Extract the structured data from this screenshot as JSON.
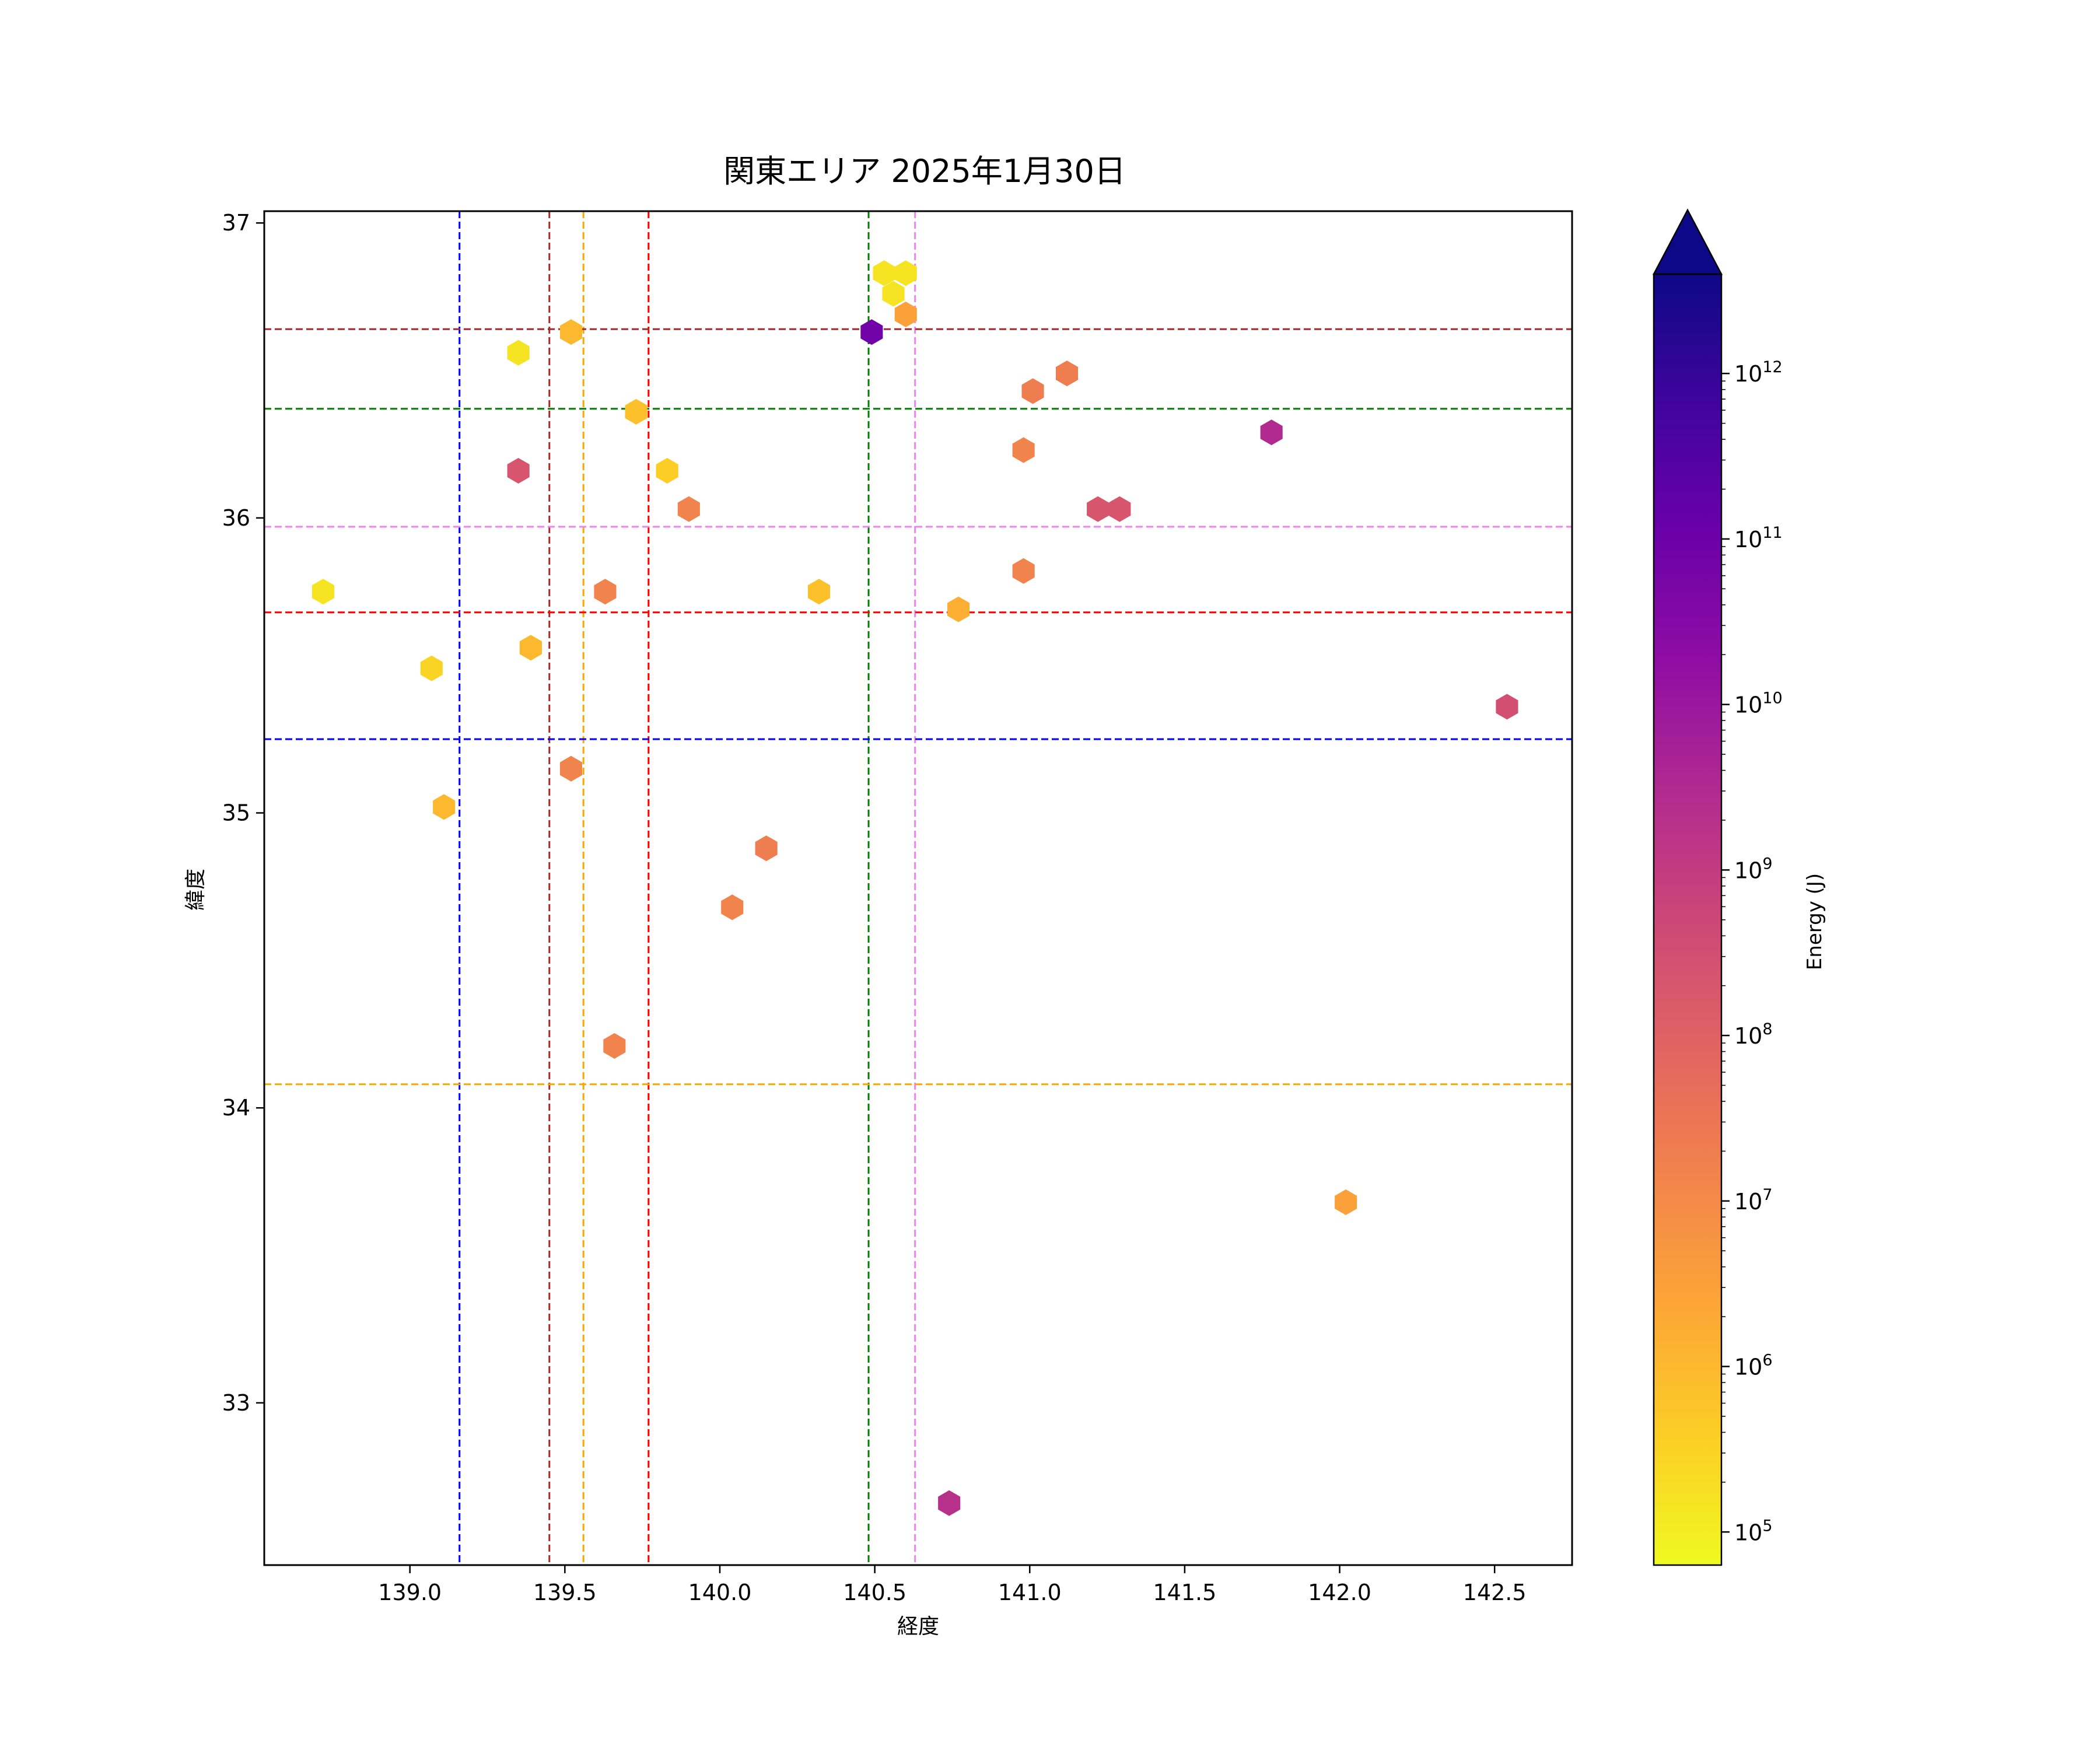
{
  "chart_data": {
    "type": "scatter",
    "title": "関東エリア 2025年1月30日",
    "xlabel": "経度",
    "ylabel": "緯度",
    "xlim": [
      138.53,
      142.75
    ],
    "ylim": [
      32.45,
      37.04
    ],
    "xticks": [
      {
        "value": 139.0,
        "label": "139.0"
      },
      {
        "value": 139.5,
        "label": "139.5"
      },
      {
        "value": 140.0,
        "label": "140.0"
      },
      {
        "value": 140.5,
        "label": "140.5"
      },
      {
        "value": 141.0,
        "label": "141.0"
      },
      {
        "value": 141.5,
        "label": "141.5"
      },
      {
        "value": 142.0,
        "label": "142.0"
      },
      {
        "value": 142.5,
        "label": "142.5"
      }
    ],
    "yticks": [
      {
        "value": 33,
        "label": "33"
      },
      {
        "value": 34,
        "label": "34"
      },
      {
        "value": 35,
        "label": "35"
      },
      {
        "value": 36,
        "label": "36"
      },
      {
        "value": 37,
        "label": "37"
      }
    ],
    "grid": false,
    "marker": "hexagon",
    "points": [
      {
        "x": 138.72,
        "y": 35.75,
        "energy": 150000.0
      },
      {
        "x": 139.07,
        "y": 35.49,
        "energy": 300000.0
      },
      {
        "x": 139.11,
        "y": 35.02,
        "energy": 1000000.0
      },
      {
        "x": 139.35,
        "y": 36.56,
        "energy": 150000.0
      },
      {
        "x": 139.35,
        "y": 36.16,
        "energy": 200000000.0
      },
      {
        "x": 139.39,
        "y": 35.56,
        "energy": 1000000.0
      },
      {
        "x": 139.52,
        "y": 36.63,
        "energy": 1000000.0
      },
      {
        "x": 139.52,
        "y": 35.15,
        "energy": 15000000.0
      },
      {
        "x": 139.63,
        "y": 35.75,
        "energy": 15000000.0
      },
      {
        "x": 139.66,
        "y": 34.21,
        "energy": 15000000.0
      },
      {
        "x": 139.73,
        "y": 36.36,
        "energy": 700000.0
      },
      {
        "x": 139.83,
        "y": 36.16,
        "energy": 400000.0
      },
      {
        "x": 139.9,
        "y": 36.03,
        "energy": 15000000.0
      },
      {
        "x": 140.04,
        "y": 34.68,
        "energy": 15000000.0
      },
      {
        "x": 140.15,
        "y": 34.88,
        "energy": 20000000.0
      },
      {
        "x": 140.32,
        "y": 35.75,
        "energy": 700000.0
      },
      {
        "x": 140.49,
        "y": 36.63,
        "energy": 80000000000.0
      },
      {
        "x": 140.53,
        "y": 36.83,
        "energy": 150000.0
      },
      {
        "x": 140.6,
        "y": 36.83,
        "energy": 150000.0
      },
      {
        "x": 140.56,
        "y": 36.76,
        "energy": 150000.0
      },
      {
        "x": 140.6,
        "y": 36.69,
        "energy": 3000000.0
      },
      {
        "x": 140.74,
        "y": 32.66,
        "energy": 2000000000.0
      },
      {
        "x": 140.77,
        "y": 35.69,
        "energy": 1500000.0
      },
      {
        "x": 140.98,
        "y": 36.23,
        "energy": 15000000.0
      },
      {
        "x": 140.98,
        "y": 35.82,
        "energy": 15000000.0
      },
      {
        "x": 141.01,
        "y": 36.43,
        "energy": 20000000.0
      },
      {
        "x": 141.12,
        "y": 36.49,
        "energy": 20000000.0
      },
      {
        "x": 141.22,
        "y": 36.03,
        "energy": 200000000.0
      },
      {
        "x": 141.29,
        "y": 36.03,
        "energy": 200000000.0
      },
      {
        "x": 141.78,
        "y": 36.29,
        "energy": 3000000000.0
      },
      {
        "x": 142.02,
        "y": 33.68,
        "energy": 3000000.0
      },
      {
        "x": 142.54,
        "y": 35.36,
        "energy": 300000000.0
      }
    ],
    "vlines": [
      {
        "x": 139.16,
        "color": "#0000ff"
      },
      {
        "x": 139.45,
        "color": "#a52a2a"
      },
      {
        "x": 139.56,
        "color": "#ffa500"
      },
      {
        "x": 139.77,
        "color": "#ff0000"
      },
      {
        "x": 140.48,
        "color": "#008000"
      },
      {
        "x": 140.63,
        "color": "#ee82ee"
      }
    ],
    "hlines": [
      {
        "y": 36.64,
        "color": "#a52a2a"
      },
      {
        "y": 36.37,
        "color": "#008000"
      },
      {
        "y": 35.97,
        "color": "#ee82ee"
      },
      {
        "y": 35.68,
        "color": "#ff0000"
      },
      {
        "y": 35.25,
        "color": "#0000ff"
      },
      {
        "y": 34.08,
        "color": "#ffa500"
      }
    ],
    "colorbar": {
      "label": "Energy (J)",
      "scale": "log",
      "colormap": "plasma_r",
      "min_exp": 4.8,
      "max_exp": 12.6,
      "extend": "max",
      "ticks": [
        {
          "base": "10",
          "exp": "5",
          "value": 5
        },
        {
          "base": "10",
          "exp": "6",
          "value": 6
        },
        {
          "base": "10",
          "exp": "7",
          "value": 7
        },
        {
          "base": "10",
          "exp": "8",
          "value": 8
        },
        {
          "base": "10",
          "exp": "9",
          "value": 9
        },
        {
          "base": "10",
          "exp": "10",
          "value": 10
        },
        {
          "base": "10",
          "exp": "11",
          "value": 11
        },
        {
          "base": "10",
          "exp": "12",
          "value": 12
        }
      ]
    }
  }
}
